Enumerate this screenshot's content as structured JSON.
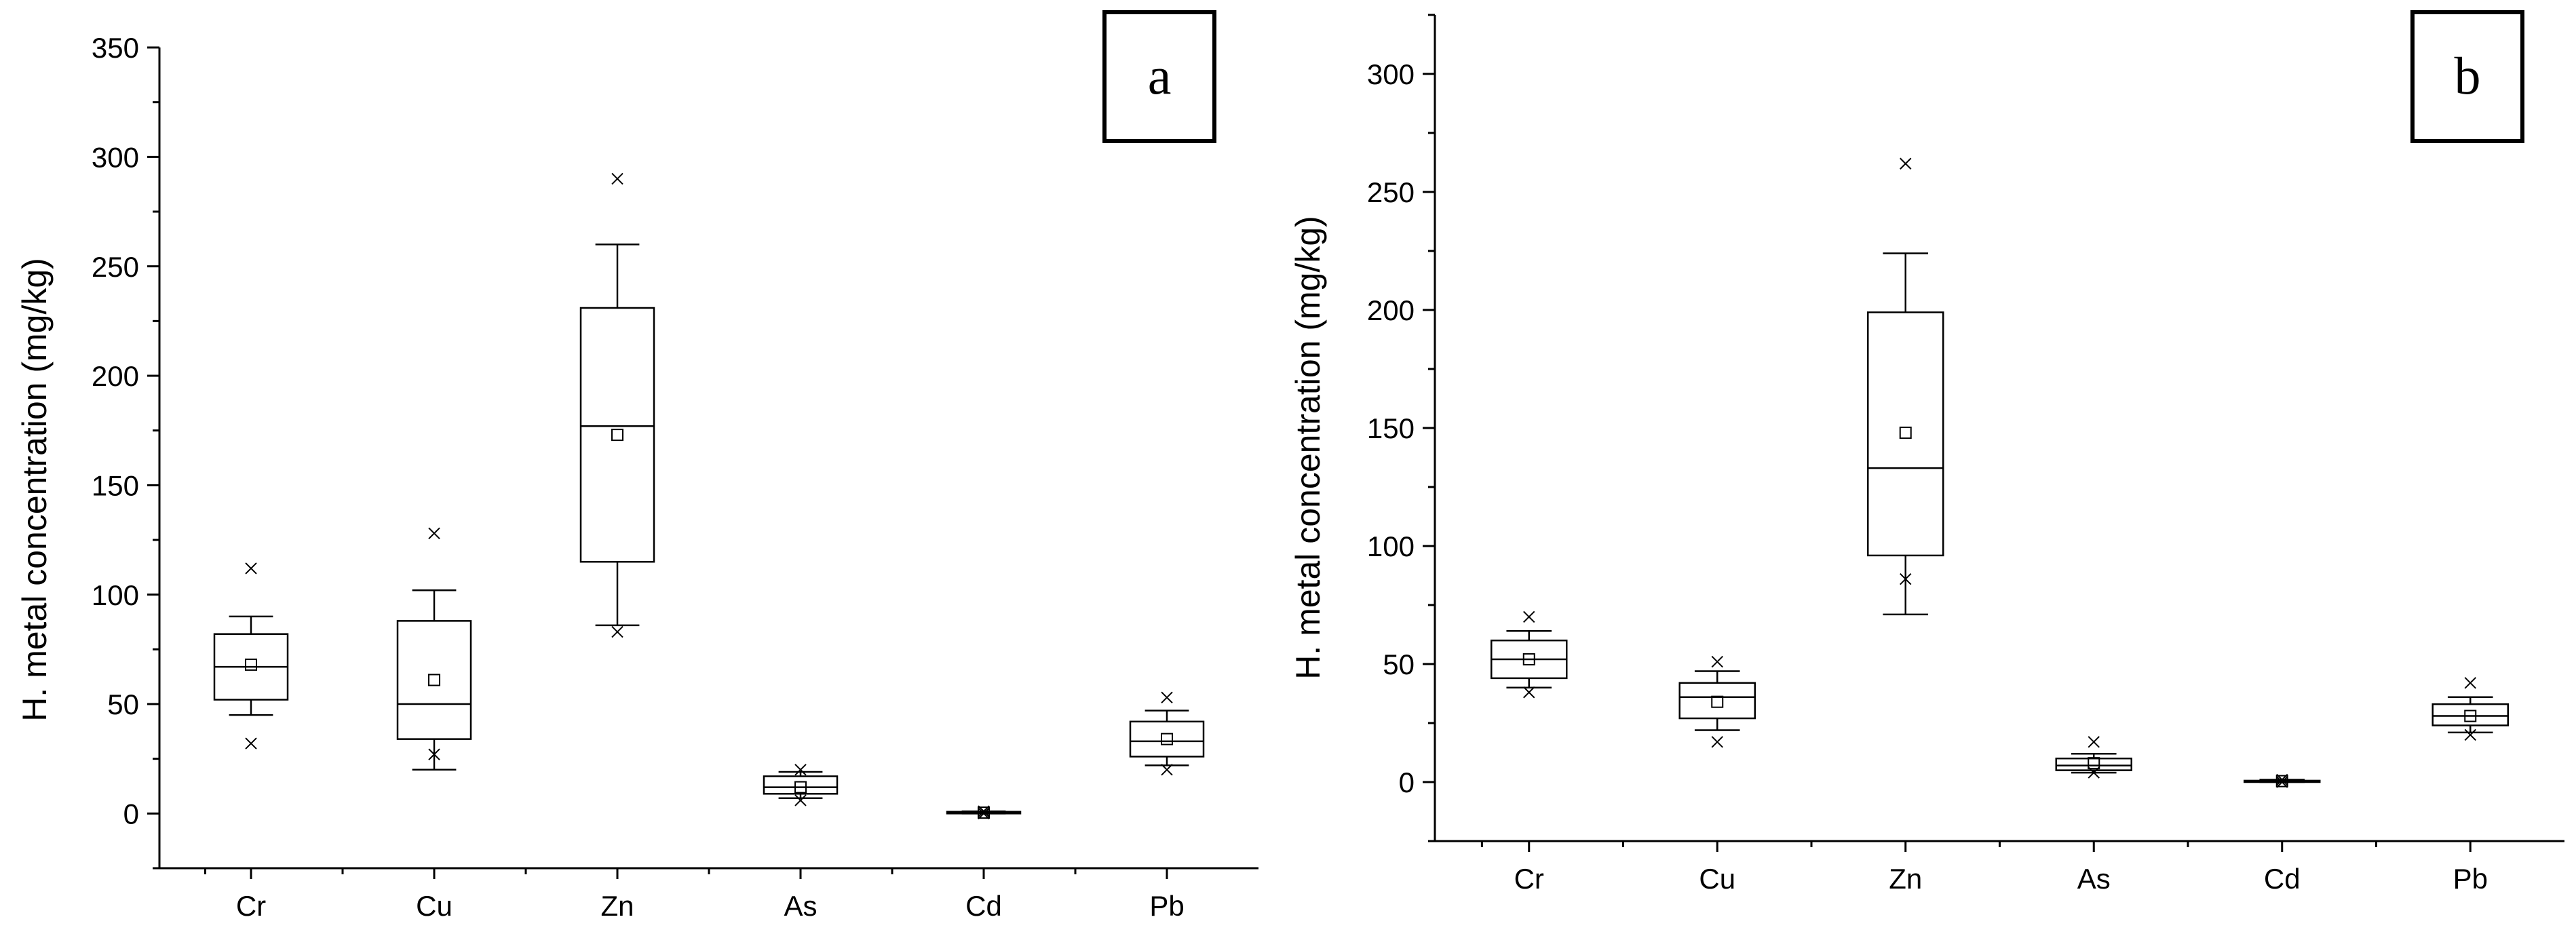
{
  "chart_data": [
    {
      "type": "box",
      "panel_label": "a",
      "ylabel": "H. metal concentration (mg/kg)",
      "xlabel": "",
      "ylim": [
        -25,
        350
      ],
      "yticks": [
        0,
        50,
        100,
        150,
        200,
        250,
        300,
        350
      ],
      "categories": [
        "Cr",
        "Cu",
        "Zn",
        "As",
        "Cd",
        "Pb"
      ],
      "boxes": [
        {
          "q1": 52,
          "median": 67,
          "q3": 82,
          "whisker_low": 45,
          "whisker_high": 90,
          "mean": 68,
          "min": 32,
          "max": 112
        },
        {
          "q1": 34,
          "median": 50,
          "q3": 88,
          "whisker_low": 20,
          "whisker_high": 102,
          "mean": 61,
          "min": 27,
          "max": 128
        },
        {
          "q1": 115,
          "median": 177,
          "q3": 231,
          "whisker_low": 86,
          "whisker_high": 260,
          "mean": 173,
          "min": 83,
          "max": 290
        },
        {
          "q1": 9,
          "median": 12,
          "q3": 17,
          "whisker_low": 7,
          "whisker_high": 19,
          "mean": 12,
          "min": 6,
          "max": 20
        },
        {
          "q1": 0,
          "median": 0.4,
          "q3": 0.8,
          "whisker_low": 0,
          "whisker_high": 1,
          "mean": 0.4,
          "min": 0,
          "max": 1
        },
        {
          "q1": 26,
          "median": 33,
          "q3": 42,
          "whisker_low": 22,
          "whisker_high": 47,
          "mean": 34,
          "min": 20,
          "max": 53
        }
      ]
    },
    {
      "type": "box",
      "panel_label": "b",
      "ylabel": "H. metal concentration (mg/kg)",
      "xlabel": "",
      "ylim": [
        -25,
        325
      ],
      "yticks": [
        0,
        50,
        100,
        150,
        200,
        250,
        300
      ],
      "categories": [
        "Cr",
        "Cu",
        "Zn",
        "As",
        "Cd",
        "Pb"
      ],
      "boxes": [
        {
          "q1": 44,
          "median": 52,
          "q3": 60,
          "whisker_low": 40,
          "whisker_high": 64,
          "mean": 52,
          "min": 38,
          "max": 70
        },
        {
          "q1": 27,
          "median": 36,
          "q3": 42,
          "whisker_low": 22,
          "whisker_high": 47,
          "mean": 34,
          "min": 17,
          "max": 51
        },
        {
          "q1": 96,
          "median": 133,
          "q3": 199,
          "whisker_low": 71,
          "whisker_high": 224,
          "mean": 148,
          "min": 86,
          "max": 262
        },
        {
          "q1": 5,
          "median": 7,
          "q3": 10,
          "whisker_low": 4,
          "whisker_high": 12,
          "mean": 8,
          "min": 4,
          "max": 17
        },
        {
          "q1": 0,
          "median": 0.3,
          "q3": 0.6,
          "whisker_low": 0,
          "whisker_high": 1,
          "mean": 0.4,
          "min": 0,
          "max": 1
        },
        {
          "q1": 24,
          "median": 28,
          "q3": 33,
          "whisker_low": 21,
          "whisker_high": 36,
          "mean": 28,
          "min": 20,
          "max": 42
        }
      ]
    }
  ]
}
